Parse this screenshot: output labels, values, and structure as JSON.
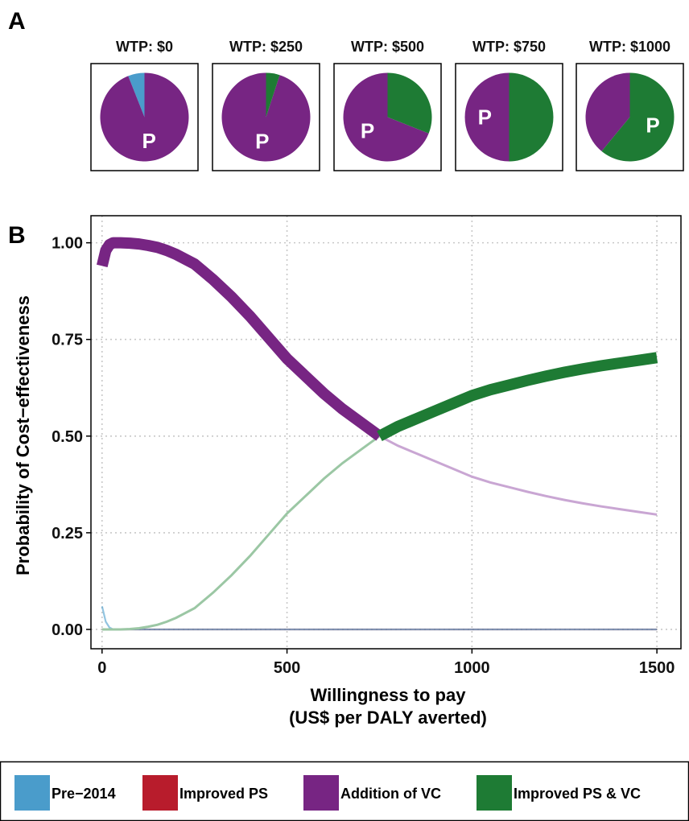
{
  "colors": {
    "pre2014": "#4a9ccb",
    "improved_ps": "#b81c2c",
    "addition_vc": "#772583",
    "improved_ps_vc": "#1e7b34",
    "addition_vc_light": "#c9a6d3",
    "improved_ps_vc_light": "#9bc7a4",
    "grid": "#c8c8c8"
  },
  "panel_a": {
    "label": "A",
    "pies": [
      {
        "title": "WTP: $0",
        "wtp": 0,
        "letter": "P",
        "shares": {
          "pre2014": 0.06,
          "improved_ps": 0.0,
          "addition_vc": 0.94,
          "improved_ps_vc": 0.0
        }
      },
      {
        "title": "WTP: $250",
        "wtp": 250,
        "letter": "P",
        "shares": {
          "pre2014": 0.0,
          "improved_ps": 0.0,
          "addition_vc": 0.95,
          "improved_ps_vc": 0.05
        }
      },
      {
        "title": "WTP: $500",
        "wtp": 500,
        "letter": "P",
        "shares": {
          "pre2014": 0.0,
          "improved_ps": 0.0,
          "addition_vc": 0.69,
          "improved_ps_vc": 0.31
        }
      },
      {
        "title": "WTP: $750",
        "wtp": 750,
        "letter": "P",
        "shares": {
          "pre2014": 0.0,
          "improved_ps": 0.0,
          "addition_vc": 0.5,
          "improved_ps_vc": 0.5
        }
      },
      {
        "title": "WTP: $1000",
        "wtp": 1000,
        "letter": "P",
        "shares": {
          "pre2014": 0.0,
          "improved_ps": 0.0,
          "addition_vc": 0.39,
          "improved_ps_vc": 0.61
        }
      }
    ]
  },
  "chart_data": {
    "type": "line",
    "panel_label": "B",
    "xlabel_line1": "Willingness to pay",
    "xlabel_line2": "(US$ per DALY averted)",
    "ylabel": "Probability of Cost−effectiveness",
    "xlim": [
      -30,
      1565
    ],
    "ylim": [
      -0.05,
      1.07
    ],
    "xticks": [
      0,
      500,
      1000,
      1500
    ],
    "yticks": [
      0.0,
      0.25,
      0.5,
      0.75,
      1.0
    ],
    "xtick_labels": [
      "0",
      "500",
      "1000",
      "1500"
    ],
    "ytick_labels": [
      "0.00",
      "0.25",
      "0.50",
      "0.75",
      "1.00"
    ],
    "grid": true,
    "frontier_switch_wtp": 750,
    "x": [
      0,
      10,
      20,
      30,
      50,
      75,
      100,
      125,
      150,
      175,
      200,
      250,
      300,
      350,
      400,
      450,
      500,
      550,
      600,
      650,
      700,
      750,
      800,
      850,
      900,
      950,
      1000,
      1050,
      1100,
      1150,
      1200,
      1250,
      1300,
      1350,
      1400,
      1450,
      1500
    ],
    "series": [
      {
        "key": "pre2014",
        "name": "Pre−2014",
        "values": [
          0.06,
          0.02,
          0.005,
          0.0,
          0.0,
          0.0,
          0.0,
          0.0,
          0.0,
          0.0,
          0.0,
          0.0,
          0.0,
          0.0,
          0.0,
          0.0,
          0.0,
          0.0,
          0.0,
          0.0,
          0.0,
          0.0,
          0.0,
          0.0,
          0.0,
          0.0,
          0.0,
          0.0,
          0.0,
          0.0,
          0.0,
          0.0,
          0.0,
          0.0,
          0.0,
          0.0,
          0.0
        ]
      },
      {
        "key": "improved_ps",
        "name": "Improved PS",
        "values": [
          0.0,
          0.0,
          0.0,
          0.0,
          0.0,
          0.0,
          0.0,
          0.0,
          0.0,
          0.0,
          0.0,
          0.0,
          0.0,
          0.0,
          0.0,
          0.0,
          0.0,
          0.0,
          0.0,
          0.0,
          0.0,
          0.0,
          0.0,
          0.0,
          0.0,
          0.0,
          0.0,
          0.0,
          0.0,
          0.0,
          0.0,
          0.0,
          0.0,
          0.0,
          0.0,
          0.0,
          0.0
        ]
      },
      {
        "key": "addition_vc",
        "name": "Addition of VC",
        "values": [
          0.94,
          0.98,
          0.995,
          1.0,
          1.0,
          0.999,
          0.997,
          0.993,
          0.988,
          0.98,
          0.97,
          0.945,
          0.905,
          0.86,
          0.81,
          0.755,
          0.7,
          0.655,
          0.61,
          0.57,
          0.535,
          0.5,
          0.475,
          0.455,
          0.435,
          0.415,
          0.395,
          0.38,
          0.368,
          0.356,
          0.345,
          0.335,
          0.326,
          0.318,
          0.311,
          0.304,
          0.297
        ]
      },
      {
        "key": "improved_ps_vc",
        "name": "Improved PS & VC",
        "values": [
          0.0,
          0.0,
          0.0,
          0.0,
          0.0,
          0.001,
          0.003,
          0.007,
          0.012,
          0.02,
          0.03,
          0.055,
          0.095,
          0.14,
          0.19,
          0.245,
          0.3,
          0.345,
          0.39,
          0.43,
          0.465,
          0.5,
          0.525,
          0.545,
          0.565,
          0.585,
          0.605,
          0.62,
          0.632,
          0.644,
          0.655,
          0.665,
          0.674,
          0.682,
          0.689,
          0.696,
          0.703
        ]
      }
    ]
  },
  "legend": {
    "items": [
      {
        "key": "pre2014",
        "label": "Pre−2014"
      },
      {
        "key": "improved_ps",
        "label": "Improved PS"
      },
      {
        "key": "addition_vc",
        "label": "Addition of VC"
      },
      {
        "key": "improved_ps_vc",
        "label": "Improved PS & VC"
      }
    ]
  }
}
